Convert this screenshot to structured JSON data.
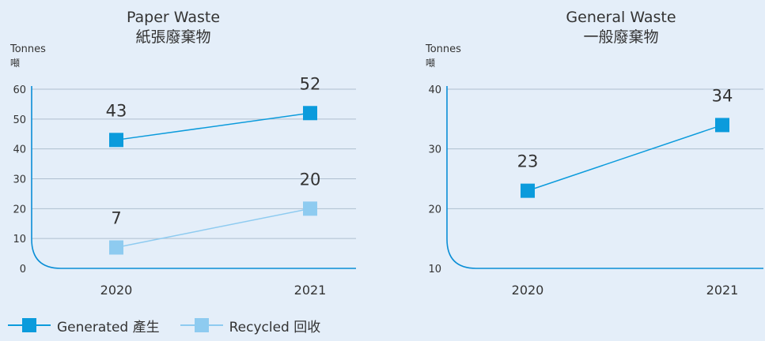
{
  "colors": {
    "background": "#e4eef9",
    "axis": "#0a8ed6",
    "grid": "#aebfcf",
    "generated": "#0b9bdc",
    "recycled": "#8ecbf0"
  },
  "legend": {
    "items": [
      {
        "label": "Generated 產生",
        "series": "generated"
      },
      {
        "label": "Recycled 回收",
        "series": "recycled"
      }
    ]
  },
  "chart_data": [
    {
      "type": "line",
      "title": "Paper Waste",
      "subtitle": "紙張廢棄物",
      "ylabel": "Tonnes",
      "ylabel_sub": "噸",
      "categories": [
        "2020",
        "2021"
      ],
      "ylim": [
        0,
        60
      ],
      "yticks": [
        0,
        10,
        20,
        30,
        40,
        50,
        60
      ],
      "grid": true,
      "series": [
        {
          "name": "Generated 產生",
          "key": "generated",
          "values": [
            43,
            52
          ],
          "labels": [
            "43",
            "52"
          ]
        },
        {
          "name": "Recycled 回收",
          "key": "recycled",
          "values": [
            7,
            20
          ],
          "labels": [
            "7",
            "20"
          ]
        }
      ]
    },
    {
      "type": "line",
      "title": "General Waste",
      "subtitle": "一般廢棄物",
      "ylabel": "Tonnes",
      "ylabel_sub": "噸",
      "categories": [
        "2020",
        "2021"
      ],
      "ylim": [
        10,
        40
      ],
      "yticks": [
        10,
        20,
        30,
        40
      ],
      "grid": true,
      "series": [
        {
          "name": "Generated 產生",
          "key": "generated",
          "values": [
            23,
            34
          ],
          "labels": [
            "23",
            "34"
          ]
        }
      ]
    }
  ]
}
